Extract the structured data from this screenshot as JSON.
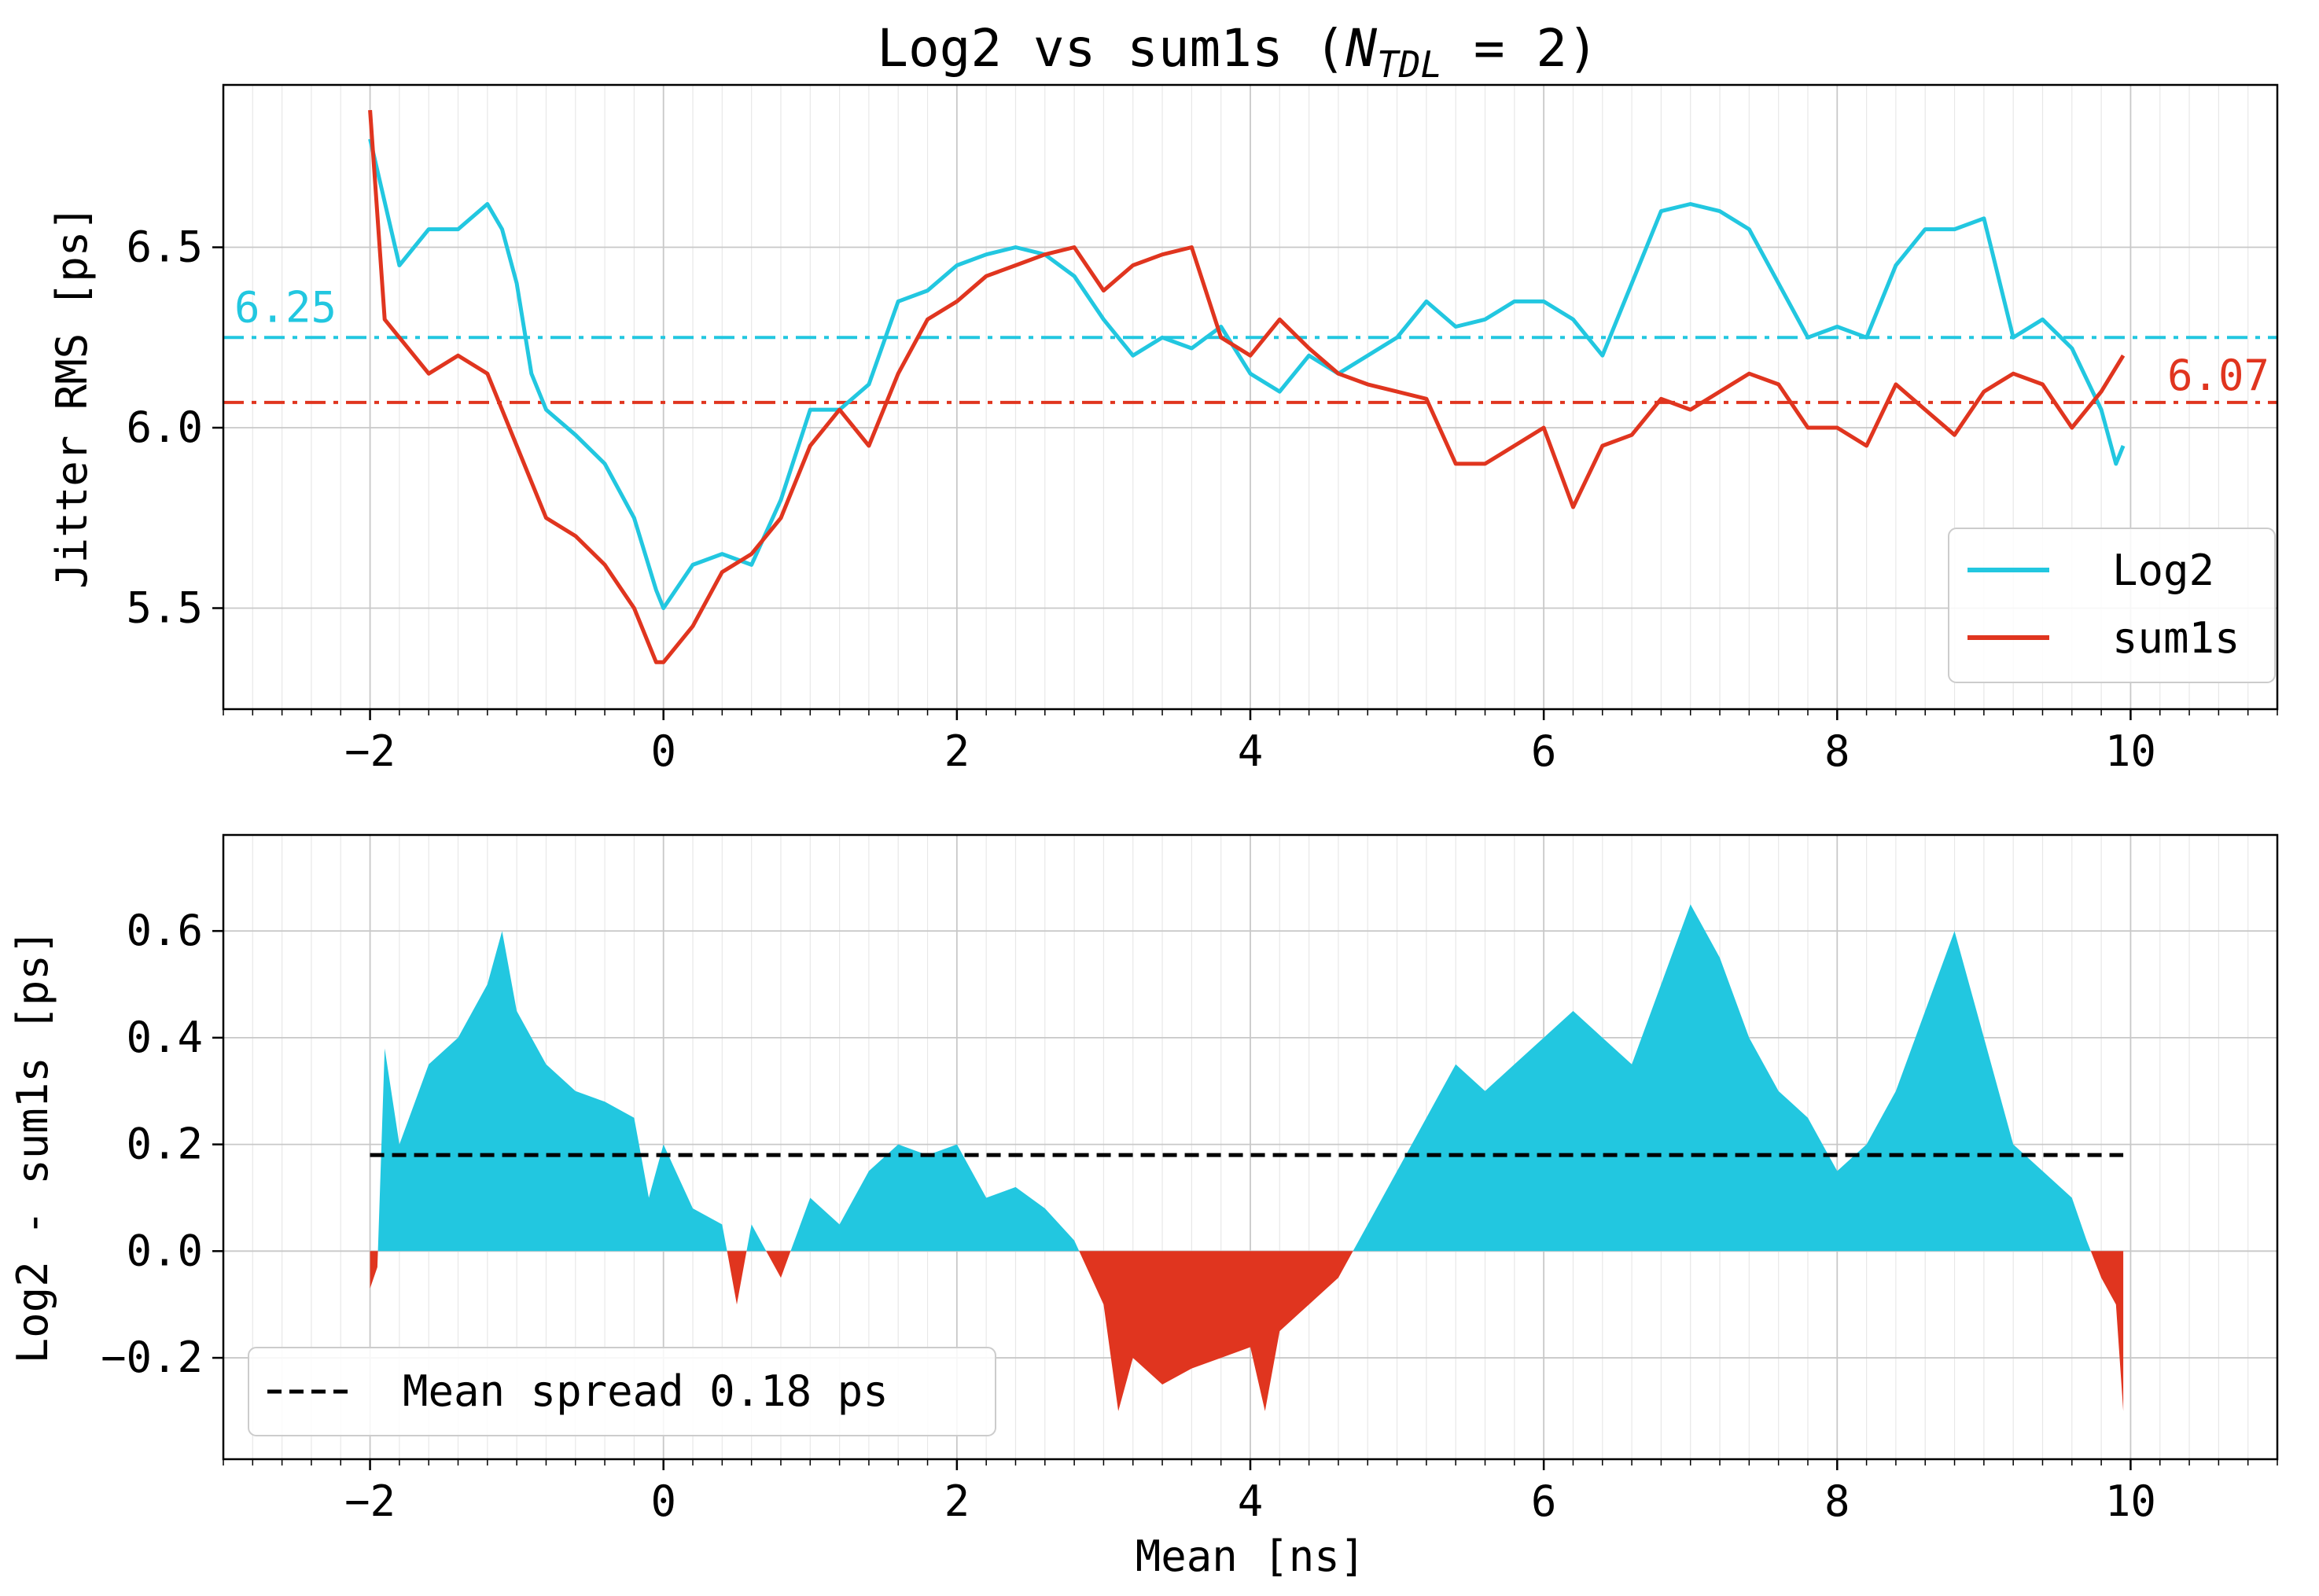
{
  "chart_data": [
    {
      "type": "line",
      "title": "Log2 vs sum1s",
      "title_math": {
        "var": "N",
        "sub": "TDL",
        "rest": " = 2)"
      },
      "xlabel": "",
      "ylabel": "Jitter RMS [ps]",
      "xlim": [
        -3,
        11
      ],
      "ylim": [
        5.22,
        6.95
      ],
      "x_ticks": [
        -2,
        0,
        2,
        4,
        6,
        8,
        10
      ],
      "x_tick_labels": [
        "−2",
        "0",
        "2",
        "4",
        "6",
        "8",
        "10"
      ],
      "y_ticks": [
        5.5,
        6.0,
        6.5
      ],
      "y_tick_labels": [
        "5.5",
        "6.0",
        "6.5"
      ],
      "grid": true,
      "minor_x_grid": true,
      "legend_position": "lower-right",
      "series": [
        {
          "name": "Log2",
          "color": "#22c7e0",
          "x": [
            -2.0,
            -1.8,
            -1.6,
            -1.4,
            -1.2,
            -1.1,
            -1.0,
            -0.9,
            -0.8,
            -0.6,
            -0.4,
            -0.2,
            -0.05,
            0.0,
            0.2,
            0.4,
            0.6,
            0.8,
            1.0,
            1.2,
            1.4,
            1.6,
            1.8,
            2.0,
            2.2,
            2.4,
            2.6,
            2.8,
            3.0,
            3.2,
            3.4,
            3.6,
            3.8,
            4.0,
            4.2,
            4.4,
            4.6,
            4.8,
            5.0,
            5.2,
            5.4,
            5.6,
            5.8,
            6.0,
            6.2,
            6.4,
            6.6,
            6.8,
            7.0,
            7.2,
            7.4,
            7.6,
            7.8,
            8.0,
            8.2,
            8.4,
            8.6,
            8.8,
            9.0,
            9.2,
            9.4,
            9.6,
            9.8,
            9.9,
            9.95
          ],
          "y": [
            6.8,
            6.45,
            6.55,
            6.55,
            6.62,
            6.55,
            6.4,
            6.15,
            6.05,
            5.98,
            5.9,
            5.75,
            5.55,
            5.5,
            5.62,
            5.65,
            5.62,
            5.8,
            6.05,
            6.05,
            6.12,
            6.35,
            6.38,
            6.45,
            6.48,
            6.5,
            6.48,
            6.42,
            6.3,
            6.2,
            6.25,
            6.22,
            6.28,
            6.15,
            6.1,
            6.2,
            6.15,
            6.2,
            6.25,
            6.35,
            6.28,
            6.3,
            6.35,
            6.35,
            6.3,
            6.2,
            6.4,
            6.6,
            6.62,
            6.6,
            6.55,
            6.4,
            6.25,
            6.28,
            6.25,
            6.45,
            6.55,
            6.55,
            6.58,
            6.25,
            6.3,
            6.22,
            6.05,
            5.9,
            5.95
          ]
        },
        {
          "name": "sum1s",
          "color": "#e0351f",
          "x": [
            -2.0,
            -1.9,
            -1.8,
            -1.6,
            -1.4,
            -1.2,
            -1.0,
            -0.8,
            -0.6,
            -0.4,
            -0.2,
            -0.05,
            0.0,
            0.2,
            0.4,
            0.6,
            0.8,
            1.0,
            1.2,
            1.4,
            1.6,
            1.8,
            2.0,
            2.2,
            2.4,
            2.6,
            2.8,
            3.0,
            3.2,
            3.4,
            3.6,
            3.8,
            4.0,
            4.2,
            4.4,
            4.6,
            4.8,
            5.0,
            5.2,
            5.4,
            5.6,
            5.8,
            6.0,
            6.2,
            6.4,
            6.6,
            6.8,
            7.0,
            7.2,
            7.4,
            7.6,
            7.8,
            8.0,
            8.2,
            8.4,
            8.6,
            8.8,
            9.0,
            9.2,
            9.4,
            9.6,
            9.8,
            9.95
          ],
          "y": [
            6.88,
            6.3,
            6.25,
            6.15,
            6.2,
            6.15,
            5.95,
            5.75,
            5.7,
            5.62,
            5.5,
            5.35,
            5.35,
            5.45,
            5.6,
            5.65,
            5.75,
            5.95,
            6.05,
            5.95,
            6.15,
            6.3,
            6.35,
            6.42,
            6.45,
            6.48,
            6.5,
            6.38,
            6.45,
            6.48,
            6.5,
            6.25,
            6.2,
            6.3,
            6.22,
            6.15,
            6.12,
            6.1,
            6.08,
            5.9,
            5.9,
            5.95,
            6.0,
            5.78,
            5.95,
            5.98,
            6.08,
            6.05,
            6.1,
            6.15,
            6.12,
            6.0,
            6.0,
            5.95,
            6.12,
            6.05,
            5.98,
            6.1,
            6.15,
            6.12,
            6.0,
            6.1,
            6.2
          ]
        }
      ],
      "reference_lines": [
        {
          "y": 6.25,
          "color": "#22c7e0",
          "label": "6.25",
          "style": "dash-dot",
          "label_side": "left"
        },
        {
          "y": 6.07,
          "color": "#e0351f",
          "label": "6.07",
          "style": "dash-dot",
          "label_side": "right"
        }
      ]
    },
    {
      "type": "area",
      "title": "",
      "xlabel": "Mean [ns]",
      "ylabel": "Log2 - sum1s [ps]",
      "xlim": [
        -3,
        11
      ],
      "ylim": [
        -0.39,
        0.78
      ],
      "x_ticks": [
        -2,
        0,
        2,
        4,
        6,
        8,
        10
      ],
      "x_tick_labels": [
        "−2",
        "0",
        "2",
        "4",
        "6",
        "8",
        "10"
      ],
      "y_ticks": [
        -0.2,
        0.0,
        0.2,
        0.4,
        0.6
      ],
      "y_tick_labels": [
        "−0.2",
        "0.0",
        "0.2",
        "0.4",
        "0.6"
      ],
      "grid": true,
      "minor_x_grid": true,
      "legend_position": "lower-left",
      "positive_color": "#22c7e0",
      "negative_color": "#e0351f",
      "series": [
        {
          "name": "Log2 - sum1s",
          "x": [
            -2.0,
            -1.95,
            -1.9,
            -1.8,
            -1.6,
            -1.4,
            -1.2,
            -1.1,
            -1.0,
            -0.8,
            -0.6,
            -0.4,
            -0.2,
            -0.1,
            0.0,
            0.2,
            0.4,
            0.5,
            0.6,
            0.8,
            1.0,
            1.2,
            1.4,
            1.6,
            1.8,
            2.0,
            2.2,
            2.4,
            2.6,
            2.8,
            3.0,
            3.1,
            3.2,
            3.4,
            3.6,
            3.8,
            4.0,
            4.1,
            4.2,
            4.4,
            4.6,
            4.8,
            5.0,
            5.2,
            5.4,
            5.6,
            5.8,
            6.0,
            6.2,
            6.4,
            6.6,
            6.8,
            7.0,
            7.2,
            7.4,
            7.6,
            7.8,
            8.0,
            8.2,
            8.4,
            8.6,
            8.8,
            9.0,
            9.2,
            9.4,
            9.6,
            9.7,
            9.8,
            9.9,
            9.95
          ],
          "y": [
            -0.07,
            -0.03,
            0.38,
            0.2,
            0.35,
            0.4,
            0.5,
            0.6,
            0.45,
            0.35,
            0.3,
            0.28,
            0.25,
            0.1,
            0.2,
            0.08,
            0.05,
            -0.1,
            0.05,
            -0.05,
            0.1,
            0.05,
            0.15,
            0.2,
            0.18,
            0.2,
            0.1,
            0.12,
            0.08,
            0.02,
            -0.1,
            -0.3,
            -0.2,
            -0.25,
            -0.22,
            -0.2,
            -0.18,
            -0.3,
            -0.15,
            -0.1,
            -0.05,
            0.05,
            0.15,
            0.25,
            0.35,
            0.3,
            0.35,
            0.4,
            0.45,
            0.4,
            0.35,
            0.5,
            0.65,
            0.55,
            0.4,
            0.3,
            0.25,
            0.15,
            0.2,
            0.3,
            0.45,
            0.6,
            0.4,
            0.2,
            0.15,
            0.1,
            0.02,
            -0.05,
            -0.1,
            -0.3
          ]
        }
      ],
      "mean_line": {
        "y": 0.18,
        "x_range": [
          -2,
          9.95
        ],
        "color": "#000000",
        "style": "dashed"
      },
      "legend": [
        {
          "label": "Mean spread 0.18 ps",
          "style": "dashed",
          "color": "#000000"
        }
      ]
    }
  ]
}
